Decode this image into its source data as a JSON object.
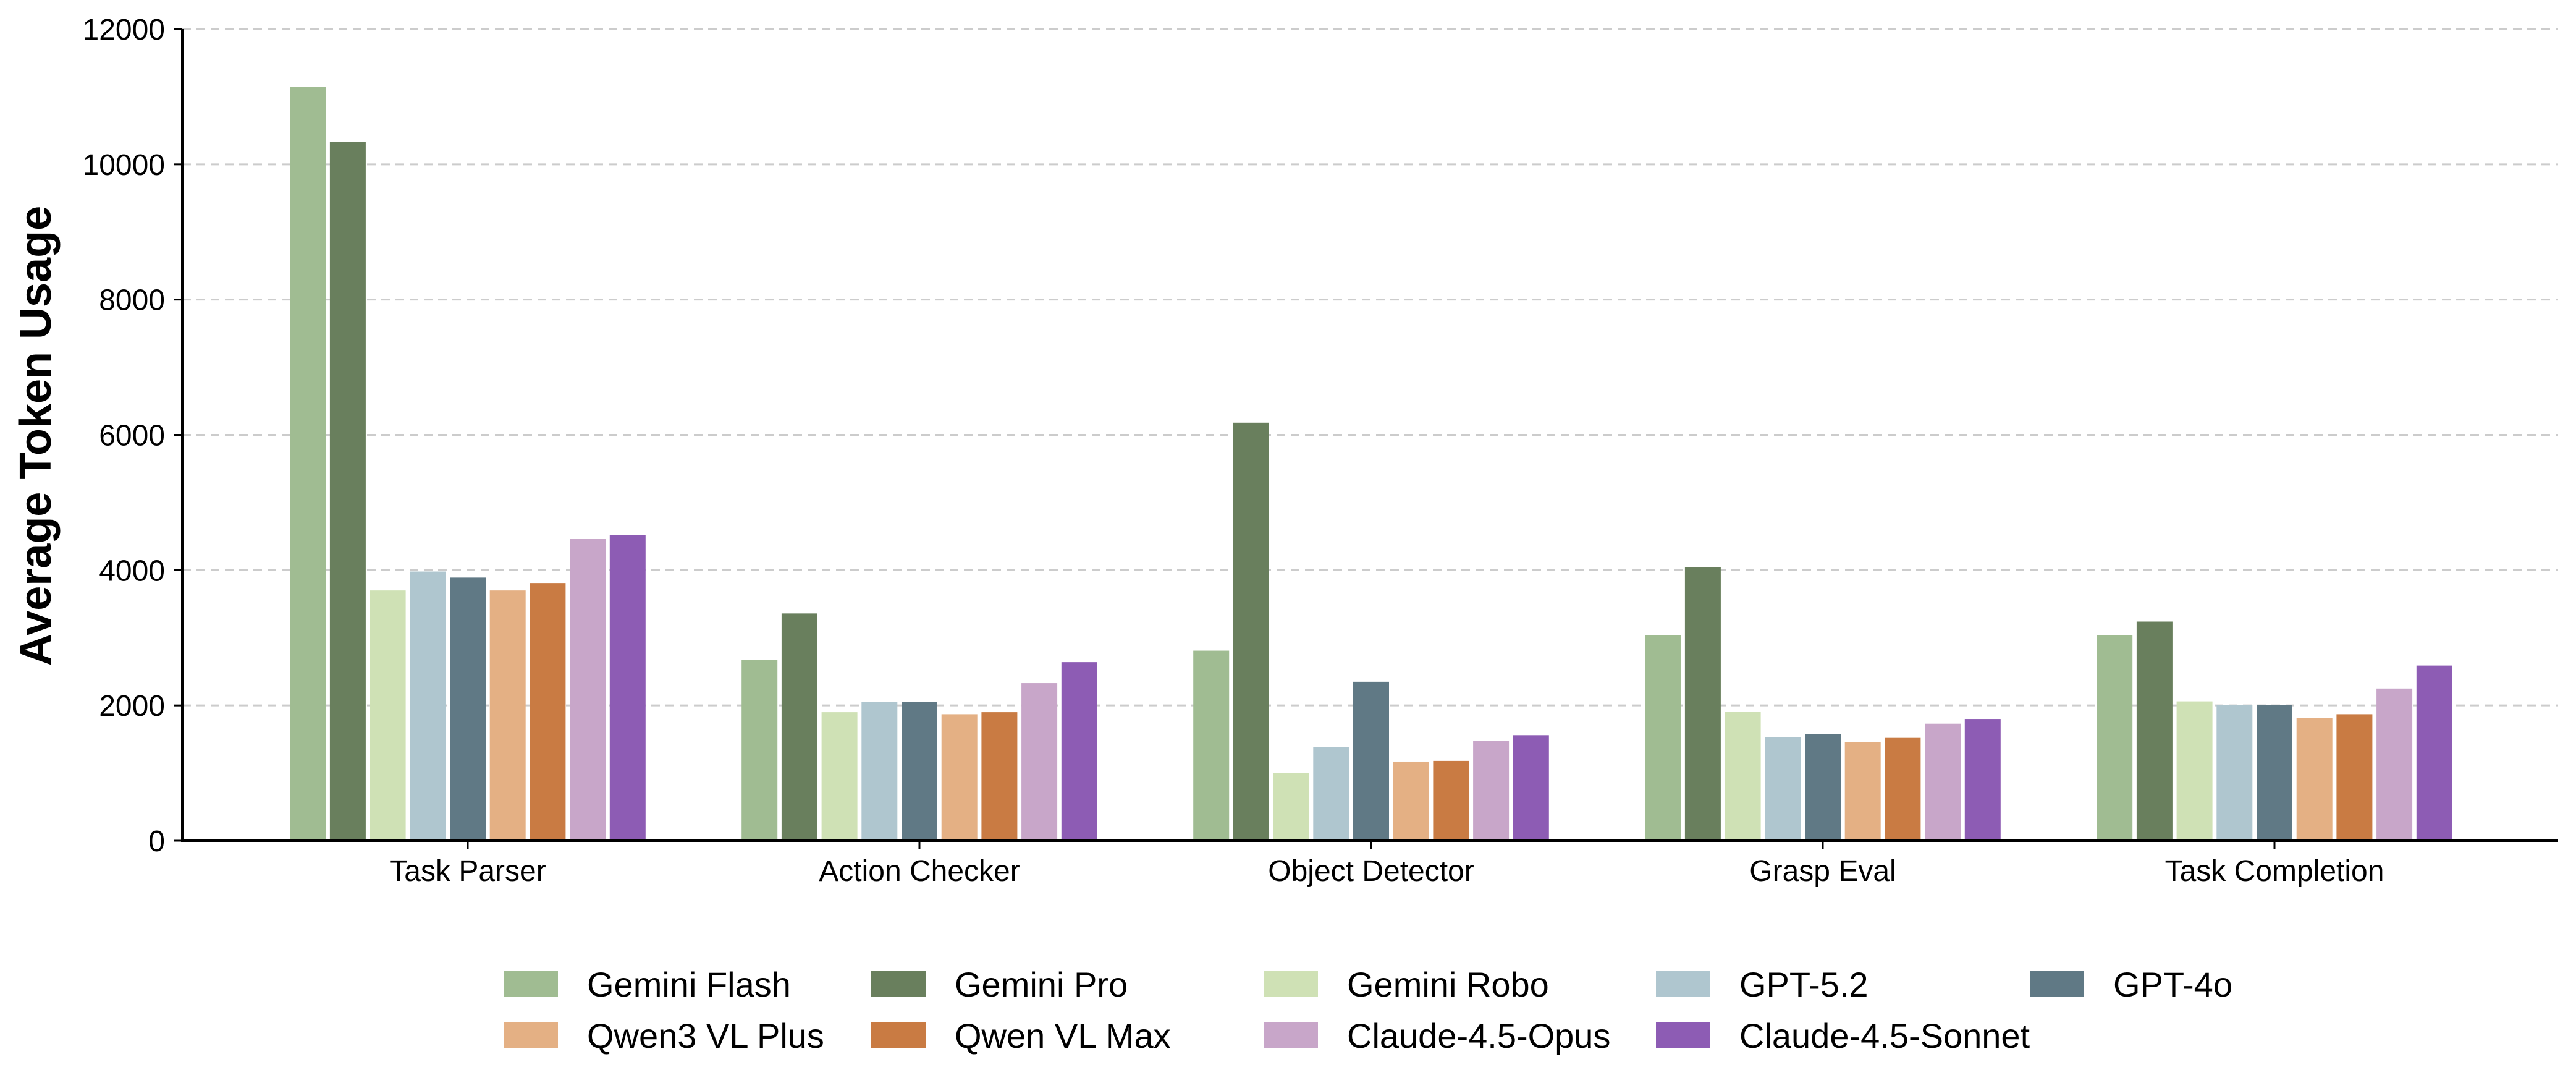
{
  "chart_data": {
    "type": "bar",
    "title": "",
    "xlabel": "",
    "ylabel": "Average Token Usage",
    "ylim": [
      0,
      12000
    ],
    "yticks": [
      "0",
      "2000",
      "4000",
      "6000",
      "8000",
      "10000",
      "12000"
    ],
    "grid": "horizontal-dashed",
    "legend_position": "bottom",
    "categories": [
      "Task Parser",
      "Action Checker",
      "Object Detector",
      "Grasp Eval",
      "Task Completion"
    ],
    "series": [
      {
        "name": "Gemini Flash",
        "color": "#a0bc92",
        "values": [
          11150,
          2670,
          2810,
          3040,
          3040
        ]
      },
      {
        "name": "Gemini Pro",
        "color": "#697f5d",
        "values": [
          10330,
          3360,
          6180,
          4040,
          3240
        ]
      },
      {
        "name": "Gemini Robo",
        "color": "#cfe1b5",
        "values": [
          3700,
          1900,
          1000,
          1910,
          2060
        ]
      },
      {
        "name": "GPT-5.2",
        "color": "#afc6cf",
        "values": [
          3980,
          2050,
          1380,
          1530,
          2010
        ]
      },
      {
        "name": "GPT-4o",
        "color": "#607985",
        "values": [
          3890,
          2050,
          2350,
          1580,
          2010
        ]
      },
      {
        "name": "Qwen3 VL Plus",
        "color": "#e4b084",
        "values": [
          3700,
          1870,
          1170,
          1460,
          1810
        ]
      },
      {
        "name": "Qwen VL Max",
        "color": "#c97b43",
        "values": [
          3810,
          1900,
          1180,
          1520,
          1870
        ]
      },
      {
        "name": "Claude-4.5-Opus",
        "color": "#c8a6c9",
        "values": [
          4460,
          2330,
          1480,
          1730,
          2250
        ]
      },
      {
        "name": "Claude-4.5-Sonnet",
        "color": "#8d5cb4",
        "values": [
          4520,
          2640,
          1560,
          1800,
          2590
        ]
      }
    ]
  }
}
